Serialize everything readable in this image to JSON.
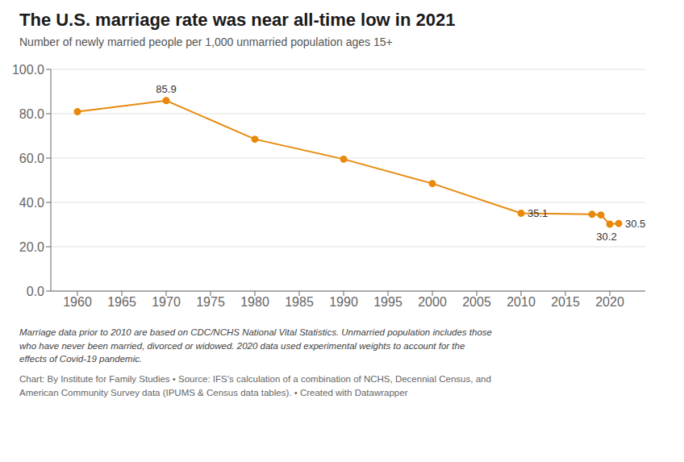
{
  "chart_data": {
    "type": "line",
    "title": "The U.S. marriage rate was near all-time low in 2021",
    "subtitle": "Number of newly married people per 1,000 unmarried population ages 15+",
    "x": [
      1960,
      1970,
      1980,
      1990,
      2000,
      2010,
      2018,
      2019,
      2020,
      2021
    ],
    "values": [
      80.9,
      85.9,
      68.5,
      59.5,
      48.5,
      35.1,
      34.6,
      34.3,
      30.2,
      30.5
    ],
    "color": "#E8890C",
    "xlim": [
      1957,
      2024
    ],
    "ylim": [
      0,
      100
    ],
    "xticks": [
      1960,
      1965,
      1970,
      1975,
      1980,
      1985,
      1990,
      1995,
      2000,
      2005,
      2010,
      2015,
      2020
    ],
    "yticks": [
      {
        "value": 0,
        "label": "0.0"
      },
      {
        "value": 20,
        "label": "20.0"
      },
      {
        "value": 40,
        "label": "40.0"
      },
      {
        "value": 60,
        "label": "60.0"
      },
      {
        "value": 80,
        "label": "80.0"
      },
      {
        "value": 100,
        "label": "100.0"
      }
    ],
    "grid": true,
    "annotations": [
      {
        "x": 1970,
        "y": 85.9,
        "text": "85.9"
      },
      {
        "x": 2010,
        "y": 35.1,
        "text": "35.1"
      },
      {
        "x": 2020,
        "y": 30.2,
        "text": "30.2"
      },
      {
        "x": 2021,
        "y": 30.5,
        "text": "30.5"
      }
    ],
    "notes": [
      "Marriage data prior to 2010 are based on CDC/NCHS National Vital Statistics. Unmarried population includes those\nwho have never been married, divorced or widowed. 2020 data used experimental weights to account for the\neffects of Covid-19 pandemic.",
      "Chart: By Institute for Family Studies • Source: IFS’s calculation of a combination of NCHS, Decennial Census, and\nAmerican Community Survey data (IPUMS & Census data tables). • Created with Datawrapper"
    ]
  }
}
